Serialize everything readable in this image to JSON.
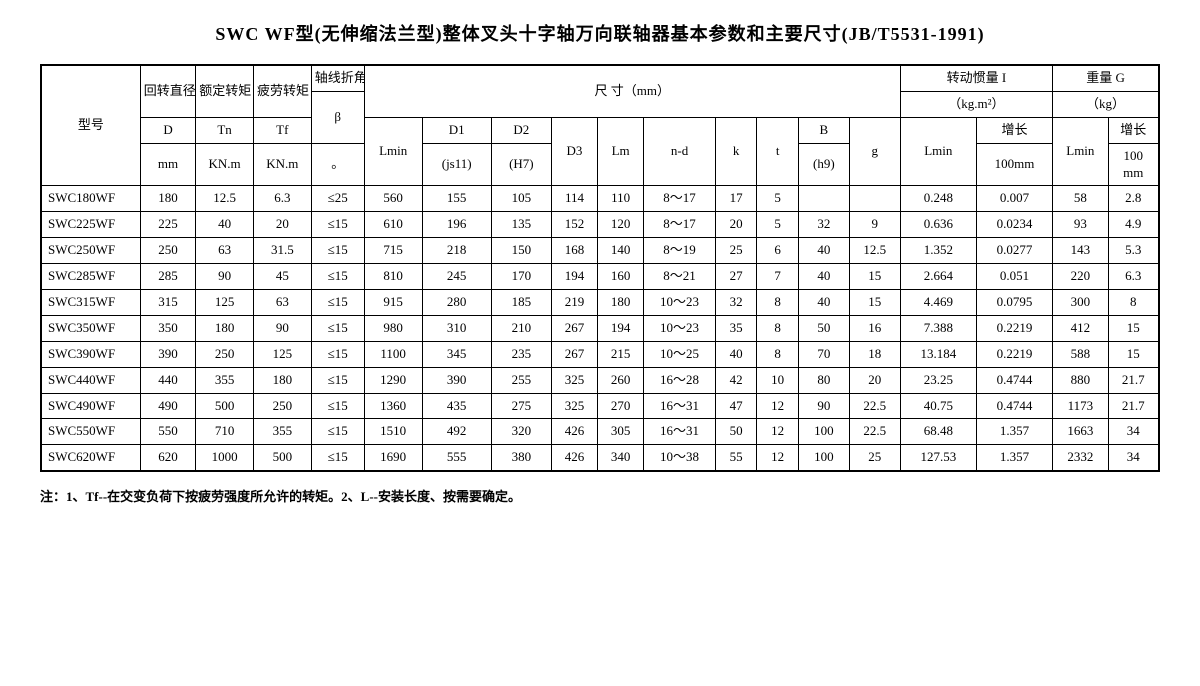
{
  "title": "SWC WF型(无伸缩法兰型)整体叉头十字轴万向联轴器基本参数和主要尺寸(JB/T5531-1991)",
  "headers": {
    "model": "型号",
    "dia": "回转直径",
    "dia2": "D",
    "dia3": "mm",
    "tn": "额定转矩",
    "tn2": "Tn",
    "tn3": "KN.m",
    "tf": "疲劳转矩",
    "tf2": "Tf",
    "tf3": "KN.m",
    "beta": "轴线折角",
    "beta2": "β",
    "beta3": "。",
    "dim": "尺 寸（mm）",
    "lmin": "Lmin",
    "d1": "D1",
    "d1b": "(js11)",
    "d2": "D2",
    "d2b": "(H7)",
    "d3": "D3",
    "lm": "Lm",
    "nd": "n-d",
    "k": "k",
    "t": "t",
    "b": "B",
    "bb": "(h9)",
    "g": "g",
    "moi": "转动惯量 I",
    "moi2": "（kg.m²）",
    "moi_lmin": "Lmin",
    "moi_inc": "增长",
    "moi_inc2": "100mm",
    "wt": "重量 G",
    "wt2": "（kg）",
    "wt_lmin": "Lmin",
    "wt_inc": "增长",
    "wt_inc2": "100",
    "wt_inc3": "mm"
  },
  "rows": [
    {
      "m": "SWC180WF",
      "d": "180",
      "tn": "12.5",
      "tf": "6.3",
      "b": "≤25",
      "lmin": "560",
      "d1": "155",
      "d2": "105",
      "d3": "114",
      "lm": "110",
      "nd": "8～17",
      "k": "17",
      "t": "5",
      "B": "",
      "g": "",
      "il": "0.248",
      "ii": "0.007",
      "wl": "58",
      "wi": "2.8"
    },
    {
      "m": "SWC225WF",
      "d": "225",
      "tn": "40",
      "tf": "20",
      "b": "≤15",
      "lmin": "610",
      "d1": "196",
      "d2": "135",
      "d3": "152",
      "lm": "120",
      "nd": "8～17",
      "k": "20",
      "t": "5",
      "B": "32",
      "g": "9",
      "il": "0.636",
      "ii": "0.0234",
      "wl": "93",
      "wi": "4.9"
    },
    {
      "m": "SWC250WF",
      "d": "250",
      "tn": "63",
      "tf": "31.5",
      "b": "≤15",
      "lmin": "715",
      "d1": "218",
      "d2": "150",
      "d3": "168",
      "lm": "140",
      "nd": "8～19",
      "k": "25",
      "t": "6",
      "B": "40",
      "g": "12.5",
      "il": "1.352",
      "ii": "0.0277",
      "wl": "143",
      "wi": "5.3"
    },
    {
      "m": "SWC285WF",
      "d": "285",
      "tn": "90",
      "tf": "45",
      "b": "≤15",
      "lmin": "810",
      "d1": "245",
      "d2": "170",
      "d3": "194",
      "lm": "160",
      "nd": "8～21",
      "k": "27",
      "t": "7",
      "B": "40",
      "g": "15",
      "il": "2.664",
      "ii": "0.051",
      "wl": "220",
      "wi": "6.3"
    },
    {
      "m": "SWC315WF",
      "d": "315",
      "tn": "125",
      "tf": "63",
      "b": "≤15",
      "lmin": "915",
      "d1": "280",
      "d2": "185",
      "d3": "219",
      "lm": "180",
      "nd": "10～23",
      "k": "32",
      "t": "8",
      "B": "40",
      "g": "15",
      "il": "4.469",
      "ii": "0.0795",
      "wl": "300",
      "wi": "8"
    },
    {
      "m": "SWC350WF",
      "d": "350",
      "tn": "180",
      "tf": "90",
      "b": "≤15",
      "lmin": "980",
      "d1": "310",
      "d2": "210",
      "d3": "267",
      "lm": "194",
      "nd": "10～23",
      "k": "35",
      "t": "8",
      "B": "50",
      "g": "16",
      "il": "7.388",
      "ii": "0.2219",
      "wl": "412",
      "wi": "15"
    },
    {
      "m": "SWC390WF",
      "d": "390",
      "tn": "250",
      "tf": "125",
      "b": "≤15",
      "lmin": "1100",
      "d1": "345",
      "d2": "235",
      "d3": "267",
      "lm": "215",
      "nd": "10～25",
      "k": "40",
      "t": "8",
      "B": "70",
      "g": "18",
      "il": "13.184",
      "ii": "0.2219",
      "wl": "588",
      "wi": "15"
    },
    {
      "m": "SWC440WF",
      "d": "440",
      "tn": "355",
      "tf": "180",
      "b": "≤15",
      "lmin": "1290",
      "d1": "390",
      "d2": "255",
      "d3": "325",
      "lm": "260",
      "nd": "16～28",
      "k": "42",
      "t": "10",
      "B": "80",
      "g": "20",
      "il": "23.25",
      "ii": "0.4744",
      "wl": "880",
      "wi": "21.7"
    },
    {
      "m": "SWC490WF",
      "d": "490",
      "tn": "500",
      "tf": "250",
      "b": "≤15",
      "lmin": "1360",
      "d1": "435",
      "d2": "275",
      "d3": "325",
      "lm": "270",
      "nd": "16～31",
      "k": "47",
      "t": "12",
      "B": "90",
      "g": "22.5",
      "il": "40.75",
      "ii": "0.4744",
      "wl": "1173",
      "wi": "21.7"
    },
    {
      "m": "SWC550WF",
      "d": "550",
      "tn": "710",
      "tf": "355",
      "b": "≤15",
      "lmin": "1510",
      "d1": "492",
      "d2": "320",
      "d3": "426",
      "lm": "305",
      "nd": "16～31",
      "k": "50",
      "t": "12",
      "B": "100",
      "g": "22.5",
      "il": "68.48",
      "ii": "1.357",
      "wl": "1663",
      "wi": "34"
    },
    {
      "m": "SWC620WF",
      "d": "620",
      "tn": "1000",
      "tf": "500",
      "b": "≤15",
      "lmin": "1690",
      "d1": "555",
      "d2": "380",
      "d3": "426",
      "lm": "340",
      "nd": "10～38",
      "k": "55",
      "t": "12",
      "B": "100",
      "g": "25",
      "il": "127.53",
      "ii": "1.357",
      "wl": "2332",
      "wi": "34"
    }
  ],
  "note": "注：1、Tf--在交变负荷下按疲劳强度所允许的转矩。2、L--安装长度、按需要确定。"
}
